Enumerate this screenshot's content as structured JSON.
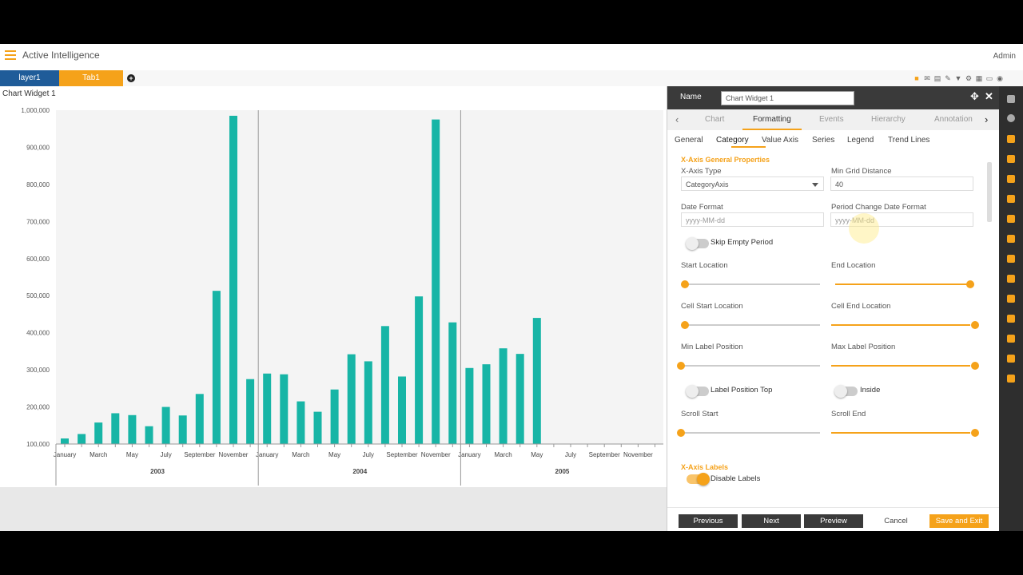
{
  "app": {
    "title": "Active Intelligence",
    "user": "Admin"
  },
  "tabs": {
    "layer": "layer1",
    "tab": "Tab1"
  },
  "toolbar_icons": [
    "lock-icon",
    "mail-icon",
    "comment-icon",
    "pencil-icon",
    "filter-icon",
    "gear-icon",
    "table-icon",
    "monitor-icon",
    "eye-icon"
  ],
  "widget": {
    "title": "Chart Widget 1"
  },
  "chart_data": {
    "type": "bar",
    "y_ticks": [
      "1,000,000",
      "900,000",
      "800,000",
      "700,000",
      "600,000",
      "500,000",
      "400,000",
      "300,000",
      "200,000",
      "100,000"
    ],
    "ylim": [
      100000,
      1000000
    ],
    "months": [
      "January",
      "March",
      "May",
      "July",
      "September",
      "November"
    ],
    "years": [
      "2003",
      "2004",
      "2005"
    ],
    "grid": false,
    "series": [
      {
        "values": [
          115000,
          127000,
          158000,
          183000,
          178000,
          148000,
          200000,
          177000,
          235000,
          513000,
          985000,
          275000,
          290000,
          288000,
          215000,
          187000,
          247000,
          342000,
          323000,
          418000,
          282000,
          498000,
          975000,
          428000,
          305000,
          315000,
          358000,
          343000,
          440000
        ]
      }
    ]
  },
  "panel": {
    "name_label": "Name",
    "name_value": "Chart Widget 1",
    "main_tabs": [
      "Chart",
      "Formatting",
      "Events",
      "Hierarchy",
      "Annotation"
    ],
    "sub_tabs": [
      "General",
      "Category",
      "Value Axis",
      "Series",
      "Legend",
      "Trend Lines"
    ],
    "section1": "X-Axis General Properties",
    "x_axis_type_label": "X-Axis Type",
    "x_axis_type_value": "CategoryAxis",
    "min_grid_label": "Min Grid Distance",
    "min_grid_value": "40",
    "date_format_label": "Date Format",
    "date_format_placeholder": "yyyy-MM-dd",
    "period_label": "Period Change Date Format",
    "period_placeholder": "yyyy-MM-dd",
    "skip_empty": "Skip Empty Period",
    "start_location": "Start Location",
    "end_location": "End Location",
    "cell_start": "Cell Start Location",
    "cell_end": "Cell End Location",
    "min_label": "Min Label Position",
    "max_label": "Max Label Position",
    "label_top": "Label Position Top",
    "inside": "Inside",
    "scroll_start": "Scroll Start",
    "scroll_end": "Scroll End",
    "section2": "X-Axis Labels",
    "disable_labels": "Disable Labels",
    "buttons": {
      "previous": "Previous",
      "next": "Next",
      "preview": "Preview",
      "cancel": "Cancel",
      "save": "Save and Exit"
    }
  }
}
